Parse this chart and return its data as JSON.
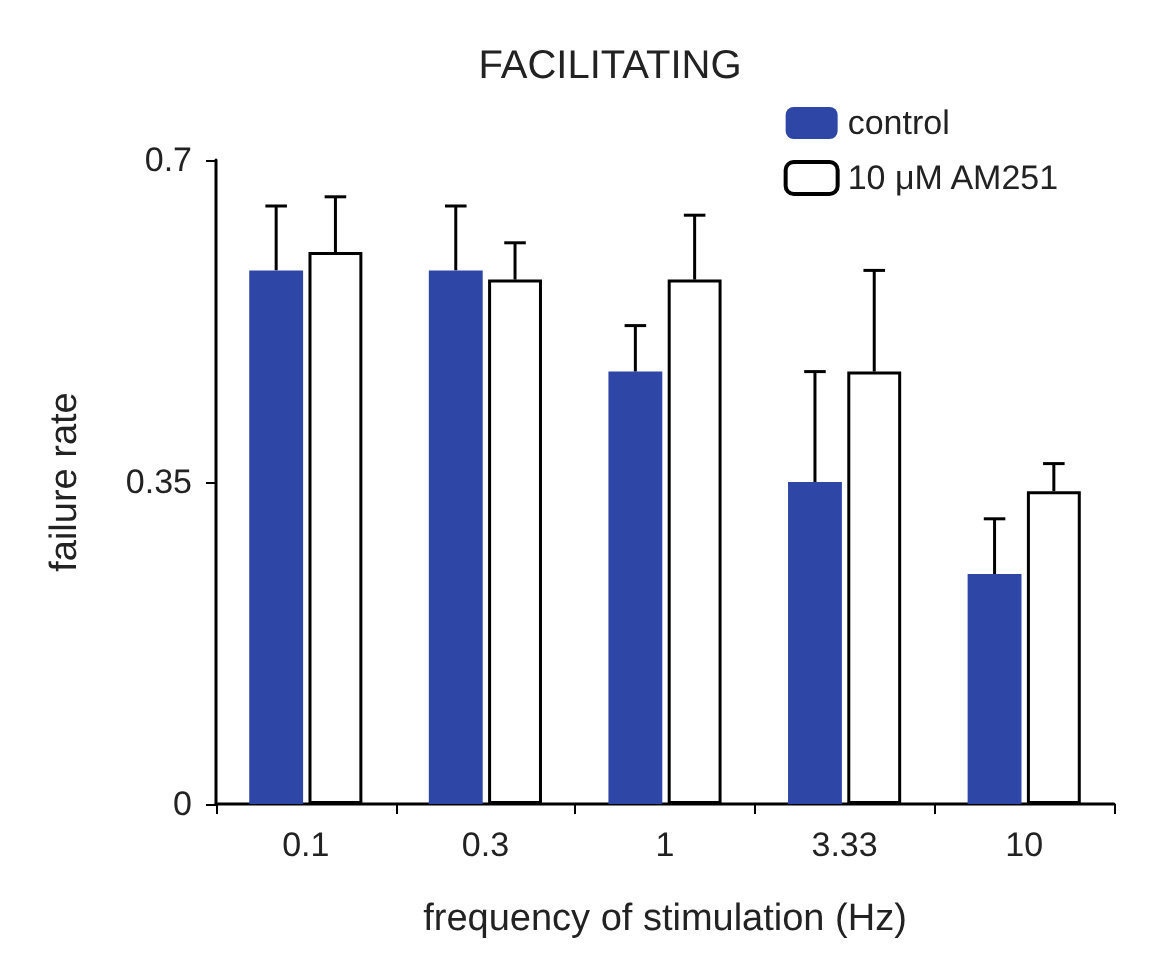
{
  "chart_data": {
    "type": "bar",
    "title": "FACILITATING",
    "xlabel": "frequency of stimulation (Hz)",
    "ylabel": "failure rate",
    "categories": [
      "0.1",
      "0.3",
      "1",
      "3.33",
      "10"
    ],
    "series": [
      {
        "name": "control",
        "color": "#2e46a6",
        "values": [
          0.58,
          0.58,
          0.47,
          0.35,
          0.25
        ],
        "errors": [
          [
            0.58,
            0.65
          ],
          [
            0.58,
            0.65
          ],
          [
            0.47,
            0.52
          ],
          [
            0.35,
            0.47
          ],
          [
            0.25,
            0.31
          ]
        ]
      },
      {
        "name": "10 μM AM251",
        "color": "#ffffff",
        "values": [
          0.6,
          0.57,
          0.57,
          0.47,
          0.34
        ],
        "errors": [
          [
            0.6,
            0.66
          ],
          [
            0.57,
            0.61
          ],
          [
            0.57,
            0.64
          ],
          [
            0.47,
            0.58
          ],
          [
            0.34,
            0.37
          ]
        ]
      }
    ],
    "ylim": [
      0,
      0.7
    ],
    "yticks": [
      0,
      0.35,
      0.7
    ],
    "grid": false,
    "legend": "top right"
  }
}
